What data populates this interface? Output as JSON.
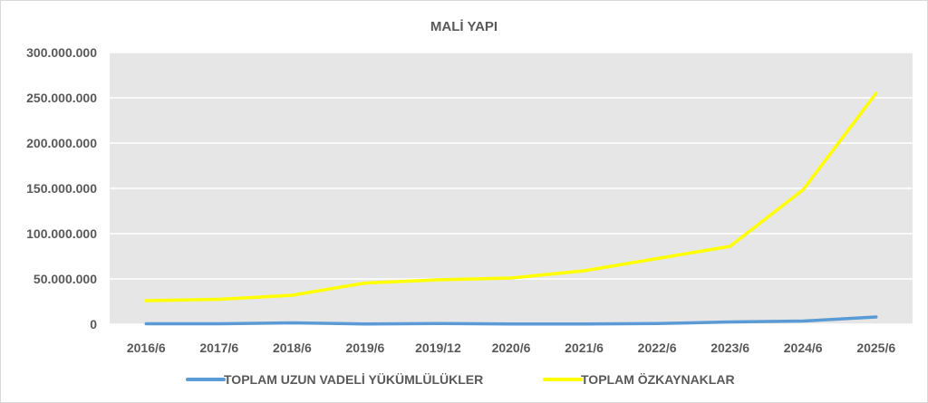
{
  "chart_data": {
    "type": "line",
    "title": "MALİ YAPI",
    "categories": [
      "2016/6",
      "2017/6",
      "2018/6",
      "2019/6",
      "2019/12",
      "2020/6",
      "2021/6",
      "2022/6",
      "2023/6",
      "2024/6",
      "2025/6"
    ],
    "ylim": [
      0,
      300000000
    ],
    "yticks": [
      0,
      50000000,
      100000000,
      150000000,
      200000000,
      250000000,
      300000000
    ],
    "ytick_labels": [
      "0",
      "50.000.000",
      "100.000.000",
      "150.000.000",
      "200.000.000",
      "250.000.000",
      "300.000.000"
    ],
    "grid": true,
    "legend_position": "bottom",
    "plot_background": "#e6e6e6",
    "series": [
      {
        "name": "TOPLAM UZUN VADELİ YÜKÜMLÜLÜKLER",
        "color": "#5b9bd5",
        "values": [
          500000,
          500000,
          1500000,
          300000,
          800000,
          200000,
          200000,
          700000,
          2500000,
          3500000,
          8000000
        ]
      },
      {
        "name": "TOPLAM ÖZKAYNAKLAR",
        "color": "#ffff00",
        "values": [
          26000000,
          27500000,
          32000000,
          45500000,
          49000000,
          51000000,
          59000000,
          72500000,
          86000000,
          148500000,
          255000000
        ]
      }
    ]
  }
}
